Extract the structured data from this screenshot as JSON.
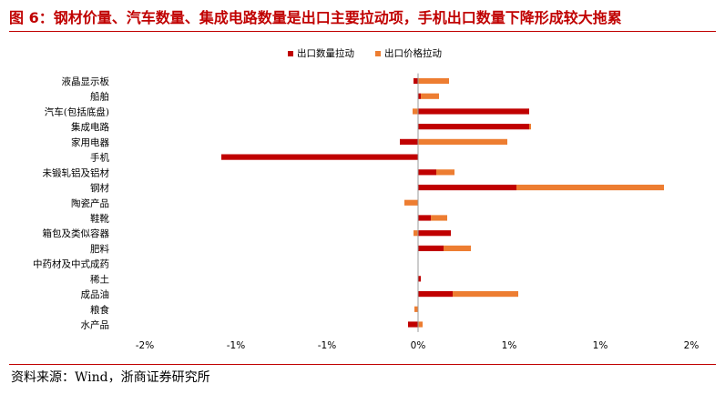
{
  "title": "图 6：钢材价量、汽车数量、集成电路数量是出口主要拉动项，手机出口数量下降形成较大拖累",
  "source": "资料来源：Wind，浙商证券研究所",
  "colors": {
    "accent": "#c00000",
    "quantity": "#c00000",
    "price": "#ed7d31"
  },
  "chart_data": {
    "type": "bar",
    "orientation": "horizontal",
    "stacked": true,
    "title": "图 6：钢材价量、汽车数量、集成电路数量是出口主要拉动项，手机出口数量下降形成较大拖累",
    "xlabel": "",
    "ylabel": "",
    "xlim": [
      -0.015,
      0.015
    ],
    "x_tick_labels": [
      "-2%",
      "-1%",
      "-1%",
      "0%",
      "1%",
      "1%",
      "2%"
    ],
    "legend_position": "top",
    "categories": [
      "液晶显示板",
      "船舶",
      "汽车(包括底盘)",
      "集成电路",
      "家用电器",
      "手机",
      "未锻轧铝及铝材",
      "钢材",
      "陶瓷产品",
      "鞋靴",
      "箱包及类似容器",
      "肥料",
      "中药材及中式成药",
      "稀土",
      "成品油",
      "粮食",
      "水产品"
    ],
    "series": [
      {
        "name": "出口数量拉动",
        "color": "#c00000",
        "values": [
          -0.00025,
          0.00015,
          0.0061,
          0.0061,
          -0.001,
          -0.0108,
          0.001,
          0.0054,
          0.0,
          0.0007,
          0.0018,
          0.0014,
          0.0,
          0.00015,
          0.0019,
          0.0,
          -0.00055
        ]
      },
      {
        "name": "出口价格拉动",
        "color": "#ed7d31",
        "values": [
          0.0017,
          0.001,
          -0.0003,
          0.0001,
          0.0049,
          0.0,
          0.001,
          0.0081,
          -0.00075,
          0.0009,
          -0.00025,
          0.0015,
          0.0,
          0.0,
          0.0036,
          -0.0002,
          0.00025
        ]
      }
    ]
  }
}
